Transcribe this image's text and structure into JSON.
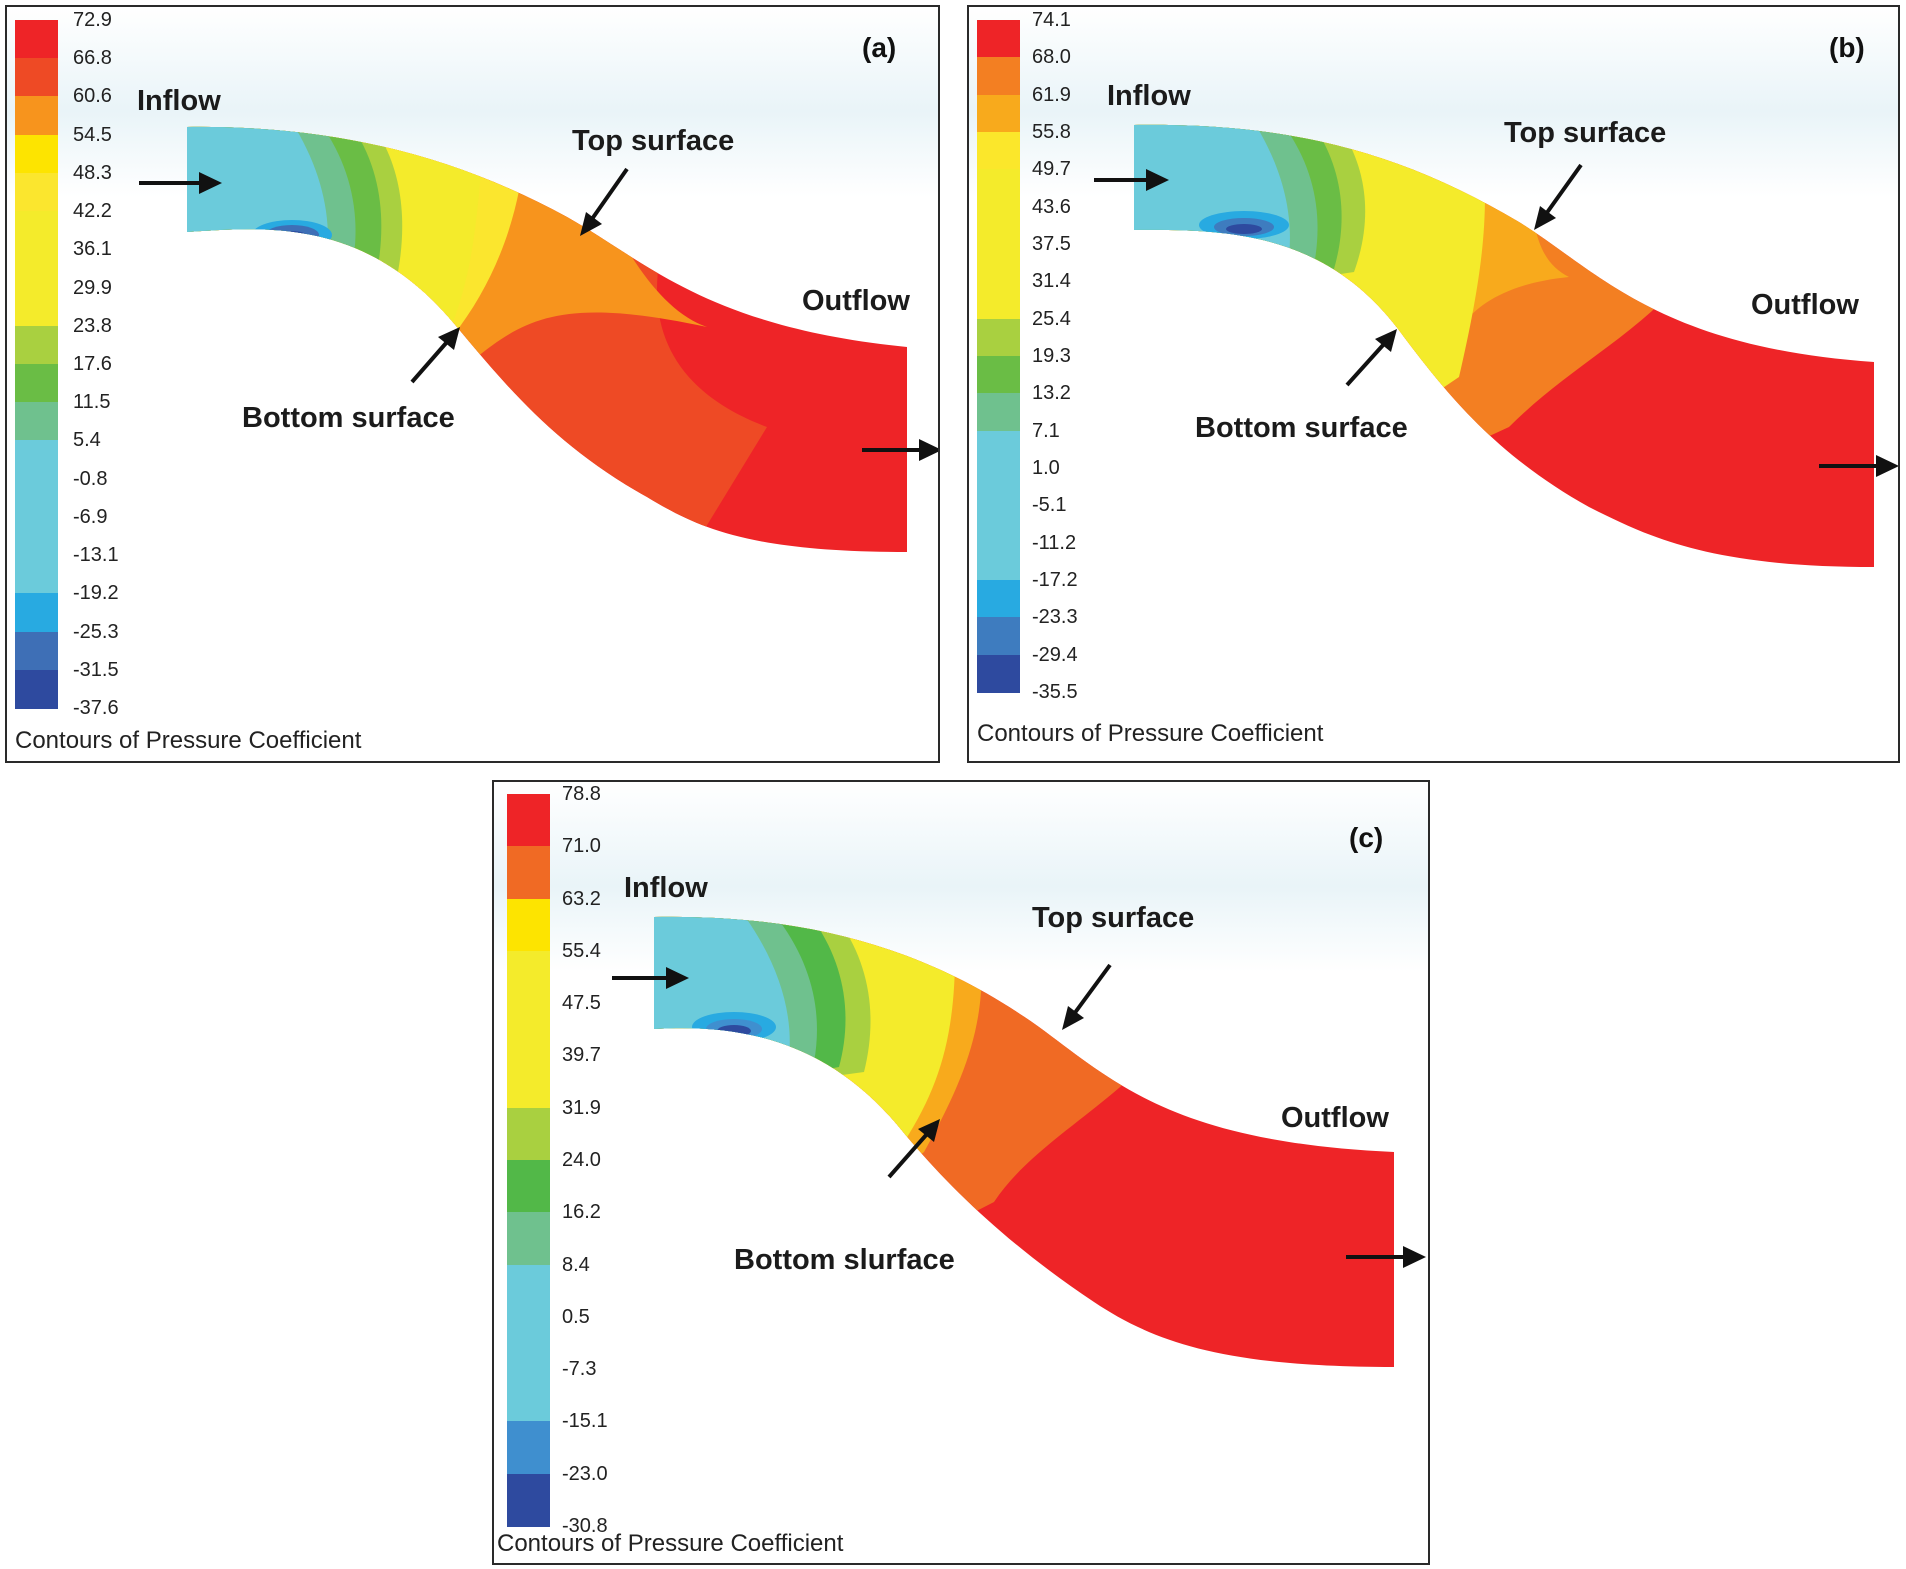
{
  "figure": {
    "panels": [
      {
        "tag": "(a)",
        "legend_values": [
          "72.9",
          "66.8",
          "60.6",
          "54.5",
          "48.3",
          "42.2",
          "36.1",
          "29.9",
          "23.8",
          "17.6",
          "11.5",
          "5.4",
          "-0.8",
          "-6.9",
          "-13.1",
          "-19.2",
          "-25.3",
          "-31.5",
          "-37.6"
        ],
        "legend_colors": [
          "#ee2427",
          "#ee4a25",
          "#f7941d",
          "#fde400",
          "#fbe62e",
          "#f4eb2b",
          "#f4eb2b",
          "#f4eb2b",
          "#a9d040",
          "#6abd45",
          "#6fc18e",
          "#6bcbdb",
          "#6bcbdb",
          "#6bcbdb",
          "#6bcbdb",
          "#28aae1",
          "#3e6fb6",
          "#2e4a9f"
        ],
        "labels": {
          "inflow": "Inflow",
          "outflow": "Outflow",
          "top": "Top surface",
          "bottom": "Bottom surface"
        },
        "caption": "Contours of Pressure Coefficient"
      },
      {
        "tag": "(b)",
        "legend_values": [
          "74.1",
          "68.0",
          "61.9",
          "55.8",
          "49.7",
          "43.6",
          "37.5",
          "31.4",
          "25.4",
          "19.3",
          "13.2",
          "7.1",
          "1.0",
          "-5.1",
          "-11.2",
          "-17.2",
          "-23.3",
          "-29.4",
          "-35.5"
        ],
        "legend_colors": [
          "#ee2427",
          "#f37f22",
          "#f8aa1c",
          "#fbe72b",
          "#f4eb2b",
          "#f4eb2b",
          "#f4eb2b",
          "#f4eb2b",
          "#a9d040",
          "#6abd45",
          "#6fc18e",
          "#6bcbdb",
          "#6bcbdb",
          "#6bcbdb",
          "#6bcbdb",
          "#28aae1",
          "#3e7cbf",
          "#2e4a9f"
        ],
        "labels": {
          "inflow": "Inflow",
          "outflow": "Outflow",
          "top": "Top surface",
          "bottom": "Bottom surface"
        },
        "caption": "Contours of Pressure Coefficient"
      },
      {
        "tag": "(c)",
        "legend_values": [
          "78.8",
          "71.0",
          "63.2",
          "55.4",
          "47.5",
          "39.7",
          "31.9",
          "24.0",
          "16.2",
          "8.4",
          "0.5",
          "-7.3",
          "-15.1",
          "-23.0",
          "-30.8"
        ],
        "legend_colors": [
          "#ee2427",
          "#f06a24",
          "#fde400",
          "#f4eb2b",
          "#f4eb2b",
          "#f4eb2b",
          "#a9d040",
          "#52b848",
          "#6fc18e",
          "#6bcbdb",
          "#6bcbdb",
          "#6bcbdb",
          "#3f8fcf",
          "#2e4a9f"
        ],
        "labels": {
          "inflow": "Inflow",
          "outflow": "Outflow",
          "top": "Top surface",
          "bottom": "Bottom slurface"
        },
        "caption": "Contours of Pressure Coefficient"
      }
    ]
  }
}
